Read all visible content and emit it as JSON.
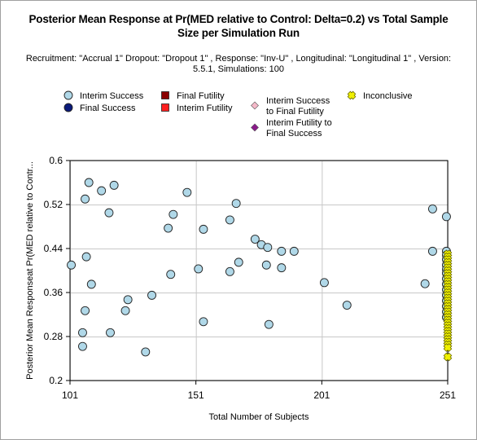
{
  "chart_data": {
    "type": "scatter",
    "title_lines": [
      "Posterior Mean Response at Pr(MED relative to Control: Delta=0.2) vs Total Sample",
      "Size per Simulation Run"
    ],
    "subtitle_lines": [
      "Recruitment: \"Accrual 1\" Dropout: \"Dropout 1\" , Response: \"Inv-U\" , Longitudinal: \"Longitudinal 1\" , Version:",
      "5.5.1, Simulations: 100"
    ],
    "xlabel": "Total Number of Subjects",
    "ylabel": "Posterior Mean Responseat Pr(MED relative to Contr...",
    "xlim": [
      101,
      251
    ],
    "ylim": [
      0.2,
      0.6
    ],
    "xticks": [
      101,
      151,
      201,
      251
    ],
    "yticks": [
      0.2,
      0.28,
      0.36,
      0.44,
      0.52,
      0.6
    ],
    "ytick_labels": [
      "0.2",
      "0.28",
      "0.36",
      "0.44",
      "0.52",
      "0.6"
    ],
    "grid": true,
    "legend": [
      {
        "key": "interim_success",
        "label_lines": [
          "Interim Success"
        ],
        "marker": "circle",
        "color": "#b0d8e8"
      },
      {
        "key": "final_success",
        "label_lines": [
          "Final Success"
        ],
        "marker": "circle",
        "color": "#0a1a7a"
      },
      {
        "key": "final_futility",
        "label_lines": [
          "Final Futility"
        ],
        "marker": "square",
        "color": "#8b0000"
      },
      {
        "key": "interim_futility",
        "label_lines": [
          "Interim Futility"
        ],
        "marker": "square",
        "color": "#ff2020"
      },
      {
        "key": "interim_success_final_futility",
        "label_lines": [
          "Interim Success",
          "to Final Futility"
        ],
        "marker": "diamond",
        "color": "#f4b8c8"
      },
      {
        "key": "interim_futility_final_success",
        "label_lines": [
          "Interim Futility to",
          "Final Success"
        ],
        "marker": "diamond",
        "color": "#8b1a8b"
      },
      {
        "key": "inconclusive",
        "label_lines": [
          "Inconclusive"
        ],
        "marker": "x",
        "color": "#f0f000"
      }
    ],
    "series": [
      {
        "name": "Interim Success",
        "points": [
          [
            101.5,
            0.41
          ],
          [
            107,
            0.53
          ],
          [
            108.5,
            0.56
          ],
          [
            107.5,
            0.425
          ],
          [
            109.5,
            0.375
          ],
          [
            107,
            0.327
          ],
          [
            106,
            0.287
          ],
          [
            106,
            0.262
          ],
          [
            113.5,
            0.545
          ],
          [
            116.5,
            0.505
          ],
          [
            118.5,
            0.555
          ],
          [
            117,
            0.287
          ],
          [
            123,
            0.327
          ],
          [
            124,
            0.347
          ],
          [
            131,
            0.252
          ],
          [
            133.5,
            0.355
          ],
          [
            140,
            0.477
          ],
          [
            142,
            0.502
          ],
          [
            141,
            0.393
          ],
          [
            147.5,
            0.542
          ],
          [
            152,
            0.403
          ],
          [
            154,
            0.475
          ],
          [
            154,
            0.307
          ],
          [
            164.5,
            0.492
          ],
          [
            167,
            0.522
          ],
          [
            164.5,
            0.398
          ],
          [
            168,
            0.415
          ],
          [
            174.5,
            0.457
          ],
          [
            177,
            0.447
          ],
          [
            179.5,
            0.442
          ],
          [
            179,
            0.41
          ],
          [
            185,
            0.435
          ],
          [
            185,
            0.405
          ],
          [
            190,
            0.435
          ],
          [
            180,
            0.302
          ],
          [
            202,
            0.378
          ],
          [
            211,
            0.337
          ],
          [
            242,
            0.376
          ],
          [
            245,
            0.512
          ],
          [
            250.5,
            0.498
          ],
          [
            245,
            0.435
          ],
          [
            250.5,
            0.435
          ],
          [
            250.5,
            0.428
          ],
          [
            250.5,
            0.42
          ],
          [
            250.5,
            0.41
          ],
          [
            250.5,
            0.402
          ],
          [
            250.5,
            0.395
          ],
          [
            250.5,
            0.385
          ],
          [
            250.5,
            0.375
          ],
          [
            250.5,
            0.365
          ],
          [
            250.5,
            0.355
          ],
          [
            250.5,
            0.345
          ],
          [
            250.5,
            0.335
          ],
          [
            250.5,
            0.325
          ],
          [
            250.5,
            0.315
          ]
        ]
      },
      {
        "name": "Inconclusive",
        "points": [
          [
            251,
            0.43
          ],
          [
            251,
            0.425
          ],
          [
            251,
            0.42
          ],
          [
            251,
            0.415
          ],
          [
            251,
            0.41
          ],
          [
            251,
            0.405
          ],
          [
            251,
            0.4
          ],
          [
            251,
            0.395
          ],
          [
            251,
            0.39
          ],
          [
            251,
            0.385
          ],
          [
            251,
            0.38
          ],
          [
            251,
            0.375
          ],
          [
            251,
            0.37
          ],
          [
            251,
            0.365
          ],
          [
            251,
            0.36
          ],
          [
            251,
            0.355
          ],
          [
            251,
            0.35
          ],
          [
            251,
            0.345
          ],
          [
            251,
            0.34
          ],
          [
            251,
            0.335
          ],
          [
            251,
            0.33
          ],
          [
            251,
            0.325
          ],
          [
            251,
            0.32
          ],
          [
            251,
            0.315
          ],
          [
            251,
            0.31
          ],
          [
            251,
            0.305
          ],
          [
            251,
            0.3
          ],
          [
            251,
            0.295
          ],
          [
            251,
            0.29
          ],
          [
            251,
            0.285
          ],
          [
            251,
            0.28
          ],
          [
            251,
            0.275
          ],
          [
            251,
            0.27
          ],
          [
            251,
            0.265
          ],
          [
            251,
            0.26
          ],
          [
            251,
            0.243
          ]
        ]
      }
    ]
  }
}
